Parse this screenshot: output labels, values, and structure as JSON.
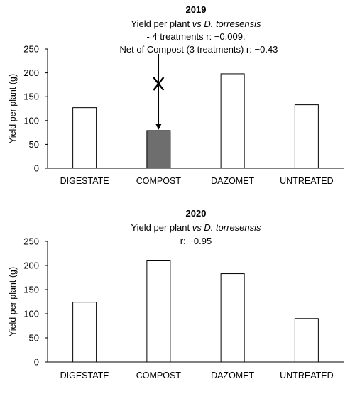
{
  "chart_data": [
    {
      "type": "bar",
      "title": "2019",
      "subtitle_lines": [
        [
          "Yield per plant ",
          "vs D. torresensis"
        ],
        [
          "- 4 treatments r: −0.009,"
        ],
        [
          "- Net of  Compost (3 treatments) r: −0.43"
        ]
      ],
      "ylabel": "Yield per plant (g)",
      "xlabel": "",
      "ylim": [
        0,
        250
      ],
      "yticks": [
        0,
        50,
        100,
        150,
        200,
        250
      ],
      "grid": false,
      "categories": [
        "DIGESTATE",
        "COMPOST",
        "DAZOMET",
        "UNTREATED"
      ],
      "values": [
        127,
        79,
        198,
        133
      ],
      "bar_colors": [
        "#ffffff",
        "#6e6e6e",
        "#ffffff",
        "#ffffff"
      ],
      "annotation": {
        "category": "COMPOST",
        "marker": "X",
        "type": "down-arrow"
      }
    },
    {
      "type": "bar",
      "title": "2020",
      "subtitle_lines": [
        [
          "Yield per plant ",
          "vs D. torresensis"
        ],
        [
          "r: −0.95"
        ]
      ],
      "ylabel": "Yield per plant (g)",
      "xlabel": "",
      "ylim": [
        0,
        250
      ],
      "yticks": [
        0,
        50,
        100,
        150,
        200,
        250
      ],
      "grid": false,
      "categories": [
        "DIGESTATE",
        "COMPOST",
        "DAZOMET",
        "UNTREATED"
      ],
      "values": [
        124,
        211,
        183,
        90
      ],
      "bar_colors": [
        "#ffffff",
        "#ffffff",
        "#ffffff",
        "#ffffff"
      ]
    }
  ]
}
